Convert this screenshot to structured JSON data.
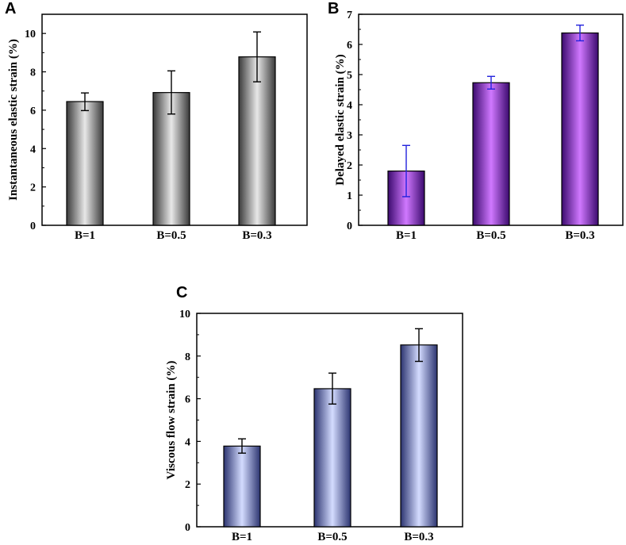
{
  "panel_labels": [
    "A",
    "B",
    "C"
  ],
  "chart_data": [
    {
      "type": "bar",
      "panel": "A",
      "categories": [
        "B=1",
        "B=0.5",
        "B=0.3"
      ],
      "values": [
        6.45,
        6.92,
        8.78
      ],
      "error_low": [
        5.98,
        5.8,
        7.48
      ],
      "error_high": [
        6.9,
        8.05,
        10.08
      ],
      "ylabel": "Instantaneous elastic strain (%)",
      "ylim": [
        0,
        11
      ],
      "yticks": [
        0,
        2,
        4,
        6,
        8,
        10
      ],
      "colors": {
        "dark": "#3a3a3a",
        "light": "#e8e8e8",
        "error": "#000000",
        "edge": "#000000"
      }
    },
    {
      "type": "bar",
      "panel": "B",
      "categories": [
        "B=1",
        "B=0.5",
        "B=0.3"
      ],
      "values": [
        1.8,
        4.73,
        6.38
      ],
      "error_low": [
        0.95,
        4.52,
        6.12
      ],
      "error_high": [
        2.65,
        4.94,
        6.64
      ],
      "ylabel": "Delayed elastic strain (%)",
      "ylim": [
        0,
        7
      ],
      "yticks": [
        0,
        1,
        2,
        3,
        4,
        5,
        6,
        7
      ],
      "colors": {
        "dark": "#3b0a6e",
        "light": "#d078ff",
        "error": "#2222dd",
        "edge": "#000000"
      }
    },
    {
      "type": "bar",
      "panel": "C",
      "categories": [
        "B=1",
        "B=0.5",
        "B=0.3"
      ],
      "values": [
        3.78,
        6.47,
        8.52
      ],
      "error_low": [
        3.45,
        5.75,
        7.75
      ],
      "error_high": [
        4.12,
        7.2,
        9.28
      ],
      "ylabel": "Viscous flow strain (%)",
      "ylim": [
        0,
        10
      ],
      "yticks": [
        0,
        2,
        4,
        6,
        8,
        10
      ],
      "colors": {
        "dark": "#2c3470",
        "light": "#d4dcff",
        "error": "#000000",
        "edge": "#000000"
      }
    }
  ]
}
